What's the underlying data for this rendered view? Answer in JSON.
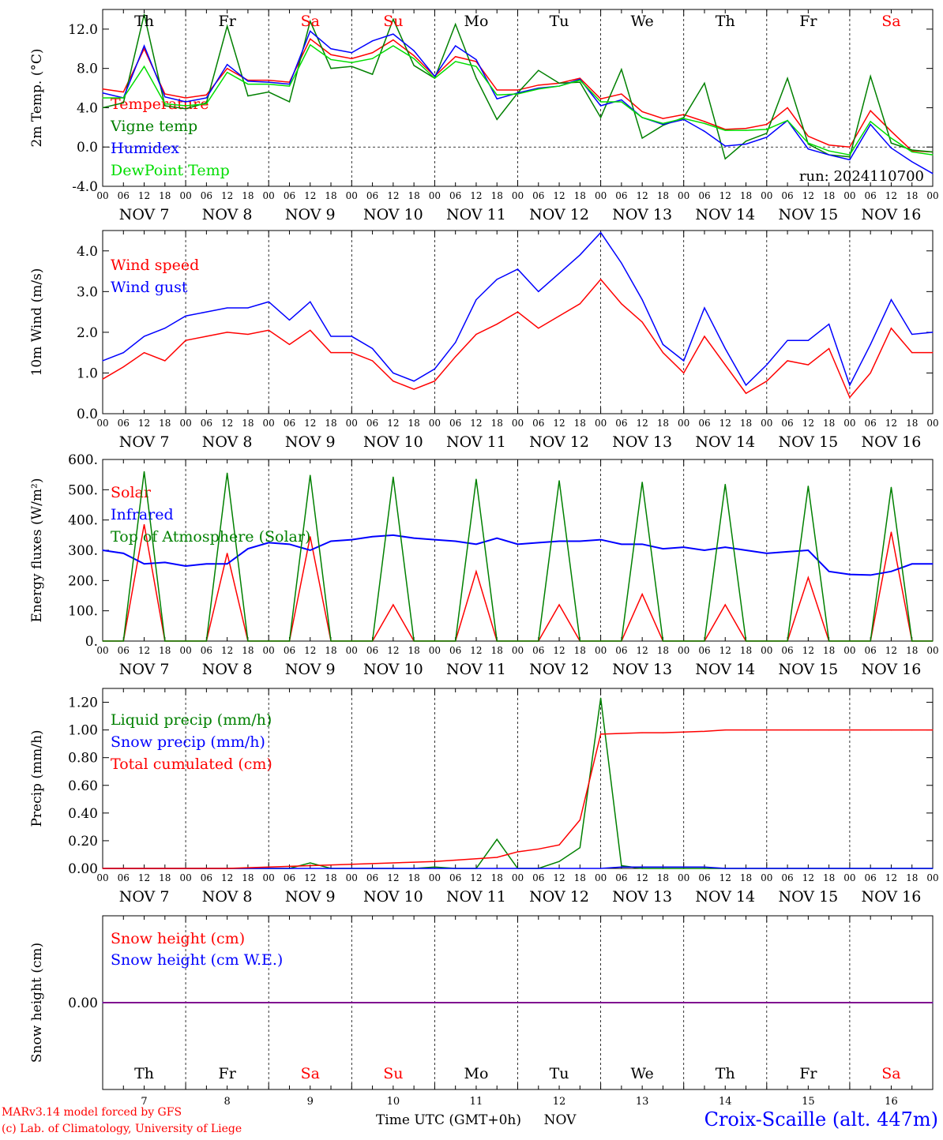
{
  "days": [
    {
      "abbr": "Th",
      "date": "NOV  7",
      "num": "7",
      "weekend": false
    },
    {
      "abbr": "Fr",
      "date": "NOV  8",
      "num": "8",
      "weekend": false
    },
    {
      "abbr": "Sa",
      "date": "NOV  9",
      "num": "9",
      "weekend": true
    },
    {
      "abbr": "Su",
      "date": "NOV 10",
      "num": "10",
      "weekend": true
    },
    {
      "abbr": "Mo",
      "date": "NOV 11",
      "num": "11",
      "weekend": false
    },
    {
      "abbr": "Tu",
      "date": "NOV 12",
      "num": "12",
      "weekend": false
    },
    {
      "abbr": "We",
      "date": "NOV 13",
      "num": "13",
      "weekend": false
    },
    {
      "abbr": "Th",
      "date": "NOV 14",
      "num": "14",
      "weekend": false
    },
    {
      "abbr": "Fr",
      "date": "NOV 15",
      "num": "15",
      "weekend": false
    },
    {
      "abbr": "Sa",
      "date": "NOV 16",
      "num": "16",
      "weekend": true
    }
  ],
  "hour_labels": [
    "00",
    "06",
    "12",
    "18"
  ],
  "colors": {
    "weekday": "#000000",
    "weekend": "#ff0000",
    "red": "#ff0000",
    "green": "#008000",
    "blue": "#0000ff",
    "lightgreen": "#00dd00",
    "purple": "#800080"
  },
  "footer": {
    "model": "MARv3.14 model forced by GFS",
    "lab": "(c) Lab. of Climatology, University of Liege",
    "xlabel": "Time UTC (GMT+0h)",
    "month": "NOV",
    "station": "Croix-Scaille (alt. 447m)"
  },
  "chart_data": [
    {
      "type": "line",
      "ylabel": "2m Temp. (°C)",
      "ylim": [
        -4,
        14
      ],
      "yticks": [
        "-4.0",
        "0.0",
        "4.0",
        "8.0",
        "12.0"
      ],
      "ytick_values": [
        -4,
        0,
        4,
        8,
        12
      ],
      "zero_dashed": true,
      "run_label": "run: 2024110700",
      "x_hours": [
        0,
        6,
        12,
        18,
        24,
        30,
        36,
        42,
        48,
        54,
        60,
        66,
        72,
        78,
        84,
        90,
        96,
        102,
        108,
        114,
        120,
        126,
        132,
        138,
        144,
        150,
        156,
        162,
        168,
        174,
        180,
        186,
        192,
        198,
        204,
        210,
        216,
        222,
        228,
        234,
        240
      ],
      "series": [
        {
          "name": "Temperature",
          "color": "#ff0000",
          "values": [
            5.9,
            5.6,
            10.0,
            5.4,
            5.0,
            5.3,
            8.0,
            6.8,
            6.8,
            6.6,
            11.0,
            9.4,
            9.0,
            9.6,
            10.9,
            9.3,
            7.2,
            9.2,
            8.7,
            5.8,
            5.8,
            6.3,
            6.5,
            7.0,
            4.9,
            5.4,
            3.6,
            2.9,
            3.3,
            2.6,
            1.8,
            1.9,
            2.3,
            4.0,
            1.1,
            0.2,
            0.0,
            3.7,
            1.6,
            -0.4,
            -0.5
          ]
        },
        {
          "name": "Vigne temp",
          "color": "#008000",
          "values": [
            4.0,
            4.5,
            13.5,
            4.2,
            3.9,
            4.5,
            12.3,
            5.2,
            5.6,
            4.6,
            12.8,
            8.0,
            8.2,
            7.4,
            13.0,
            8.3,
            7.0,
            12.5,
            7.0,
            2.8,
            5.5,
            7.8,
            6.5,
            6.6,
            3.0,
            7.9,
            0.9,
            2.2,
            3.0,
            6.5,
            -1.2,
            0.6,
            1.4,
            7.0,
            0.3,
            -0.8,
            -1.0,
            7.2,
            0.4,
            -0.3,
            -0.5
          ]
        },
        {
          "name": "Humidex",
          "color": "#0000ff",
          "values": [
            5.5,
            5.0,
            10.3,
            5.1,
            4.6,
            5.0,
            8.4,
            6.7,
            6.6,
            6.4,
            11.8,
            10.0,
            9.6,
            10.8,
            11.5,
            9.8,
            7.2,
            10.3,
            8.9,
            4.9,
            5.5,
            6.0,
            6.2,
            6.9,
            4.2,
            4.8,
            3.0,
            2.3,
            2.8,
            1.6,
            0.1,
            0.3,
            1.0,
            2.7,
            -0.2,
            -0.8,
            -1.3,
            2.3,
            -0.1,
            -1.5,
            -2.7
          ]
        },
        {
          "name": "DewPoint Temp",
          "color": "#00dd00",
          "values": [
            5.0,
            5.0,
            8.2,
            4.4,
            4.2,
            4.4,
            7.6,
            6.4,
            6.4,
            6.2,
            10.4,
            8.9,
            8.6,
            9.0,
            10.3,
            9.0,
            7.0,
            8.7,
            8.2,
            5.3,
            5.4,
            5.9,
            6.2,
            6.8,
            4.6,
            4.6,
            3.0,
            2.4,
            2.9,
            2.4,
            1.7,
            1.7,
            1.8,
            2.7,
            0.4,
            -0.4,
            -0.8,
            2.6,
            0.9,
            -0.5,
            -0.8
          ]
        }
      ]
    },
    {
      "type": "line",
      "ylabel": "10m Wind (m/s)",
      "ylim": [
        0,
        4.5
      ],
      "yticks": [
        "0.0",
        "1.0",
        "2.0",
        "3.0",
        "4.0"
      ],
      "ytick_values": [
        0,
        1,
        2,
        3,
        4
      ],
      "x_hours": [
        0,
        6,
        12,
        18,
        24,
        30,
        36,
        42,
        48,
        54,
        60,
        66,
        72,
        78,
        84,
        90,
        96,
        102,
        108,
        114,
        120,
        126,
        132,
        138,
        144,
        150,
        156,
        162,
        168,
        174,
        180,
        186,
        192,
        198,
        204,
        210,
        216,
        222,
        228,
        234,
        240
      ],
      "series": [
        {
          "name": "Wind speed",
          "color": "#ff0000",
          "values": [
            0.85,
            1.15,
            1.5,
            1.3,
            1.8,
            1.9,
            2.0,
            1.95,
            2.05,
            1.7,
            2.05,
            1.5,
            1.5,
            1.3,
            0.8,
            0.6,
            0.8,
            1.4,
            1.95,
            2.2,
            2.5,
            2.1,
            2.4,
            2.7,
            3.3,
            2.7,
            2.25,
            1.5,
            1.0,
            1.9,
            1.2,
            0.5,
            0.8,
            1.3,
            1.2,
            1.6,
            0.4,
            1.0,
            2.1,
            1.5,
            1.5
          ]
        },
        {
          "name": "Wind gust",
          "color": "#0000ff",
          "values": [
            1.3,
            1.5,
            1.9,
            2.1,
            2.4,
            2.5,
            2.6,
            2.6,
            2.75,
            2.3,
            2.75,
            1.9,
            1.9,
            1.6,
            1.0,
            0.8,
            1.1,
            1.75,
            2.8,
            3.3,
            3.55,
            3.0,
            3.45,
            3.9,
            4.45,
            3.7,
            2.8,
            1.7,
            1.3,
            2.6,
            1.6,
            0.7,
            1.2,
            1.8,
            1.8,
            2.2,
            0.7,
            1.7,
            2.8,
            1.95,
            2.0
          ]
        }
      ]
    },
    {
      "type": "line",
      "ylabel": "Energy fluxes (W/m²)",
      "ylim": [
        0,
        600
      ],
      "yticks": [
        "0.",
        "100.",
        "200.",
        "300.",
        "400.",
        "500.",
        "600."
      ],
      "ytick_values": [
        0,
        100,
        200,
        300,
        400,
        500,
        600
      ],
      "x_hours": [
        0,
        6,
        12,
        18,
        24,
        30,
        36,
        42,
        48,
        54,
        60,
        66,
        72,
        78,
        84,
        90,
        96,
        102,
        108,
        114,
        120,
        126,
        132,
        138,
        144,
        150,
        156,
        162,
        168,
        174,
        180,
        186,
        192,
        198,
        204,
        210,
        216,
        222,
        228,
        234,
        240
      ],
      "series": [
        {
          "name": "Solar",
          "color": "#ff0000",
          "values": [
            0,
            0,
            385,
            0,
            0,
            0,
            290,
            0,
            0,
            0,
            345,
            0,
            0,
            0,
            120,
            0,
            0,
            0,
            230,
            0,
            0,
            0,
            120,
            0,
            0,
            0,
            155,
            0,
            0,
            0,
            120,
            0,
            0,
            0,
            210,
            0,
            0,
            0,
            360,
            0,
            0
          ]
        },
        {
          "name": "Infrared",
          "color": "#0000ff",
          "values": [
            300,
            290,
            255,
            260,
            248,
            255,
            255,
            305,
            325,
            320,
            300,
            330,
            335,
            345,
            350,
            340,
            335,
            330,
            320,
            340,
            320,
            325,
            330,
            330,
            335,
            320,
            320,
            305,
            310,
            300,
            310,
            300,
            290,
            295,
            300,
            230,
            220,
            218,
            230,
            255,
            255
          ]
        },
        {
          "name": "Top of Atmosphere (Solar)",
          "color": "#008000",
          "values": [
            0,
            0,
            560,
            0,
            0,
            0,
            555,
            0,
            0,
            0,
            548,
            0,
            0,
            0,
            542,
            0,
            0,
            0,
            535,
            0,
            0,
            0,
            530,
            0,
            0,
            0,
            525,
            0,
            0,
            0,
            518,
            0,
            0,
            0,
            512,
            0,
            0,
            0,
            508,
            0,
            0
          ]
        }
      ]
    },
    {
      "type": "line",
      "ylabel": "Precip (mm/h)",
      "ylim": [
        0,
        1.3
      ],
      "yticks": [
        "0.00",
        "0.20",
        "0.40",
        "0.60",
        "0.80",
        "1.00",
        "1.20"
      ],
      "ytick_values": [
        0,
        0.2,
        0.4,
        0.6,
        0.8,
        1.0,
        1.2
      ],
      "x_hours": [
        0,
        6,
        12,
        18,
        24,
        30,
        36,
        42,
        48,
        54,
        60,
        66,
        72,
        78,
        84,
        90,
        96,
        102,
        108,
        114,
        120,
        126,
        132,
        138,
        144,
        150,
        156,
        162,
        168,
        174,
        180,
        186,
        192,
        198,
        204,
        210,
        216,
        222,
        228,
        234,
        240
      ],
      "series": [
        {
          "name": "Liquid precip (mm/h)",
          "color": "#008000",
          "values": [
            0,
            0,
            0,
            0,
            0,
            0,
            0,
            0,
            0,
            0,
            0.04,
            0,
            0,
            0,
            0,
            0,
            0.01,
            0,
            0,
            0.21,
            0,
            0,
            0.05,
            0.15,
            1.23,
            0.02,
            0,
            0,
            0,
            0,
            0,
            0,
            0,
            0,
            0,
            0,
            0,
            0,
            0,
            0,
            0
          ]
        },
        {
          "name": "Snow precip (mm/h)",
          "color": "#0000ff",
          "values": [
            0,
            0,
            0,
            0,
            0,
            0,
            0,
            0,
            0,
            0,
            0,
            0,
            0,
            0,
            0,
            0,
            0,
            0,
            0,
            0,
            0,
            0,
            0,
            0,
            0,
            0.01,
            0.01,
            0.01,
            0.01,
            0.01,
            0,
            0,
            0,
            0,
            0,
            0,
            0,
            0,
            0,
            0,
            0
          ]
        },
        {
          "name": "Total cumulated (cm)",
          "color": "#ff0000",
          "values": [
            0,
            0,
            0,
            0,
            0,
            0,
            0,
            0.005,
            0.01,
            0.015,
            0.02,
            0.025,
            0.03,
            0.035,
            0.04,
            0.045,
            0.05,
            0.06,
            0.07,
            0.08,
            0.12,
            0.14,
            0.17,
            0.35,
            0.97,
            0.975,
            0.98,
            0.98,
            0.985,
            0.99,
            1.0,
            1.0,
            1.0,
            1.0,
            1.0,
            1.0,
            1.0,
            1.0,
            1.0,
            1.0,
            1.0
          ]
        }
      ]
    },
    {
      "type": "line",
      "ylabel": "Snow height (cm)",
      "ylim": [
        -1,
        1
      ],
      "yticks": [
        "0.00"
      ],
      "ytick_values": [
        0
      ],
      "x_hours": [
        0,
        240
      ],
      "series": [
        {
          "name": "Snow height (cm)",
          "color": "#ff0000",
          "values": [
            0,
            0
          ]
        },
        {
          "name": "Snow height (cm W.E.)",
          "color": "#0000ff",
          "values": [
            0,
            0
          ]
        }
      ]
    }
  ]
}
